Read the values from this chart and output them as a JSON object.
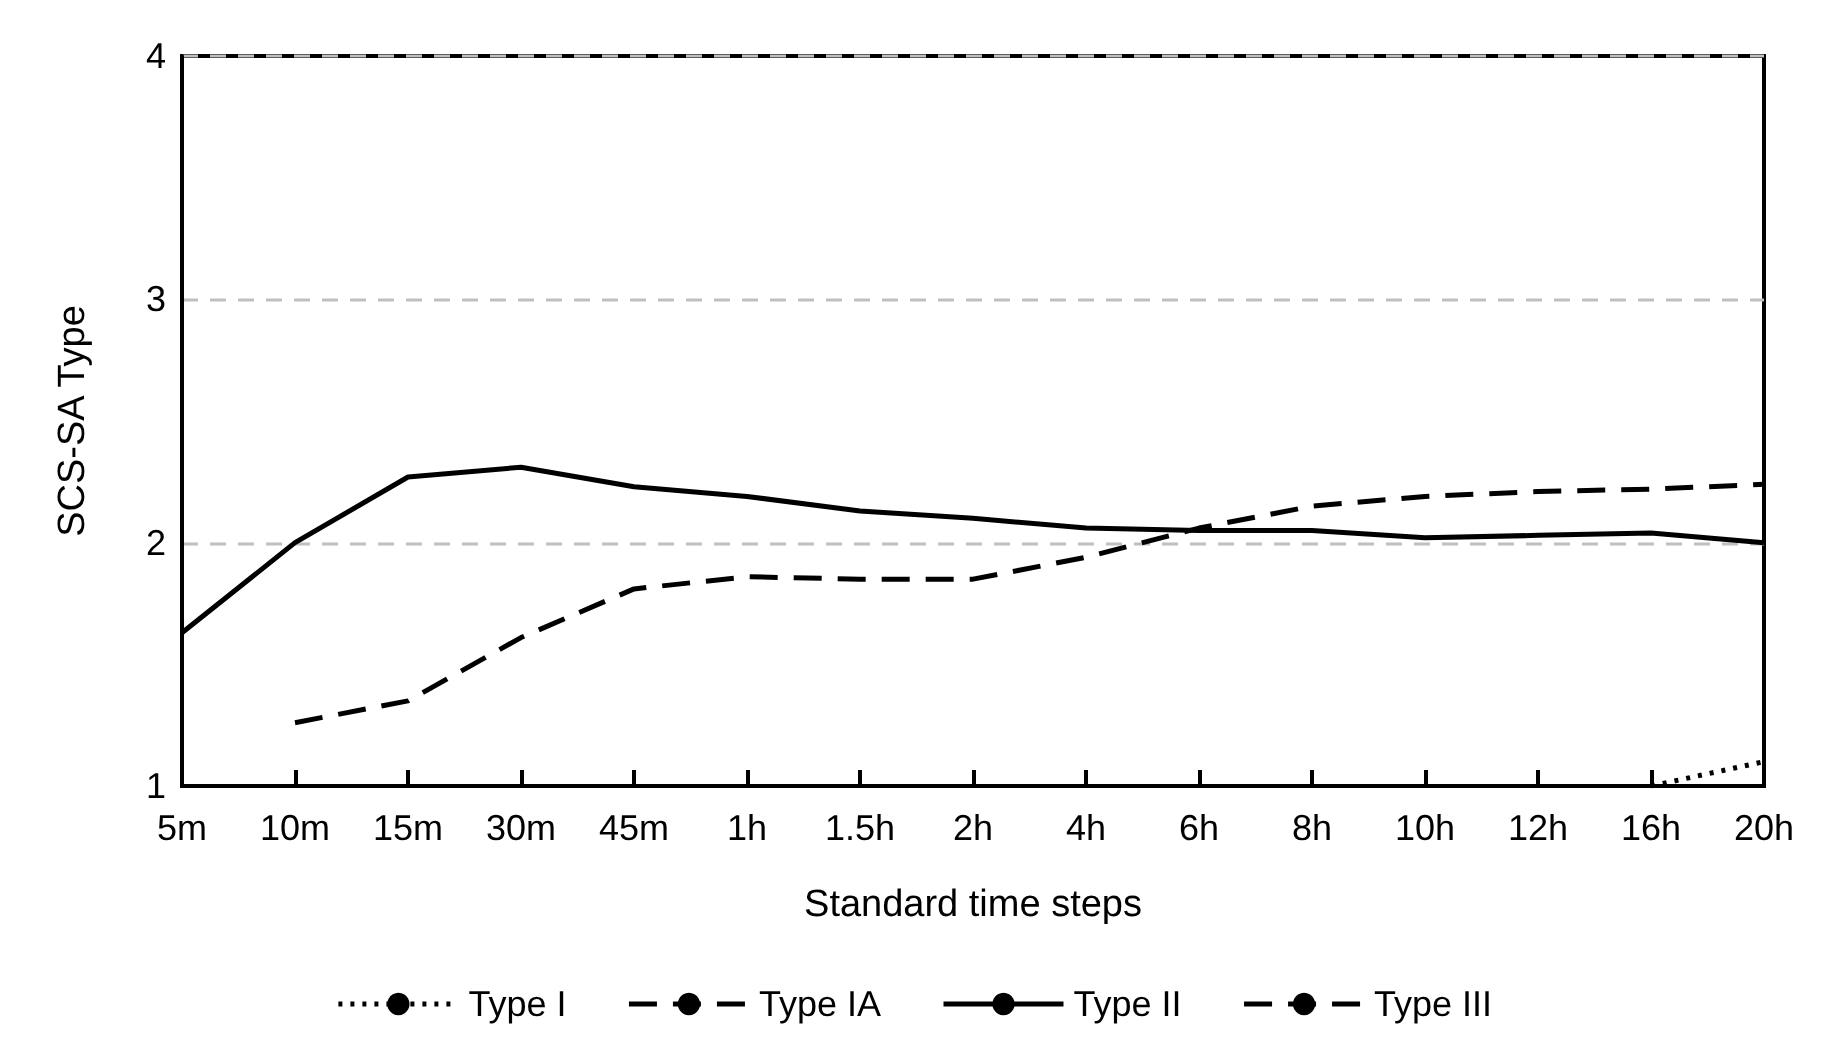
{
  "chart_data": {
    "type": "line",
    "xlabel": "Standard time steps",
    "ylabel": "SCS-SA Type",
    "categories": [
      "5m",
      "10m",
      "15m",
      "30m",
      "45m",
      "1h",
      "1.5h",
      "2h",
      "4h",
      "6h",
      "8h",
      "10h",
      "12h",
      "16h",
      "20h"
    ],
    "ylim": [
      1,
      4
    ],
    "yticks": [
      1,
      2,
      3,
      4
    ],
    "grid": "y",
    "legend": "bottom",
    "marker": "none",
    "series": [
      {
        "name": "Type I",
        "color": "#000000",
        "line_style": "dotted",
        "values": [
          null,
          null,
          null,
          null,
          null,
          null,
          null,
          null,
          null,
          null,
          null,
          null,
          null,
          1.0,
          1.1
        ]
      },
      {
        "name": "Type IA",
        "color": "#000000",
        "line_style": "dashed",
        "values": [
          null,
          null,
          null,
          null,
          null,
          null,
          null,
          null,
          null,
          null,
          null,
          null,
          null,
          null,
          null
        ]
      },
      {
        "name": "Type II",
        "color": "#000000",
        "line_style": "solid",
        "values": [
          1.63,
          2.0,
          2.27,
          2.31,
          2.23,
          2.19,
          2.13,
          2.1,
          2.06,
          2.05,
          2.05,
          2.02,
          2.03,
          2.04,
          2.0
        ]
      },
      {
        "name": "Type III",
        "color": "#000000",
        "line_style": "dashed",
        "values": [
          null,
          1.26,
          1.35,
          1.61,
          1.81,
          1.86,
          1.85,
          1.85,
          1.94,
          2.06,
          2.15,
          2.19,
          2.21,
          2.22,
          2.24
        ]
      }
    ]
  }
}
